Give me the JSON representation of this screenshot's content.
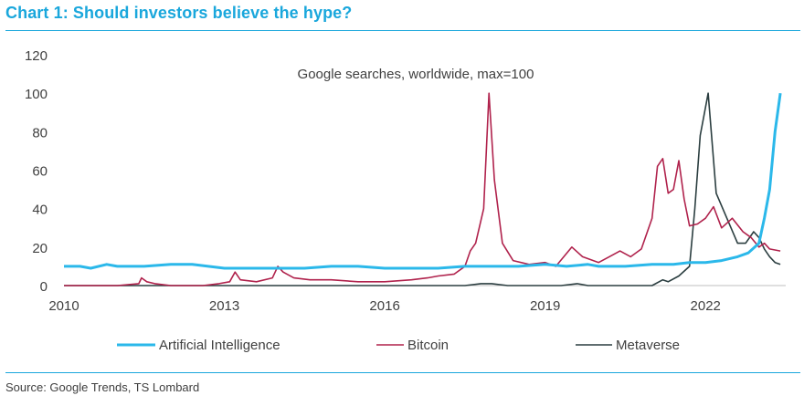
{
  "header": {
    "title": "Chart 1: Should investors believe the hype?"
  },
  "footer": {
    "source": "Source: Google Trends, TS Lombard"
  },
  "colors": {
    "accent": "#1aa7dc",
    "ai": "#2bb8ea",
    "bitcoin": "#b0224c",
    "metaverse": "#2b3e40"
  },
  "chart_data": {
    "type": "line",
    "title": "",
    "subtitle": "Google searches, worldwide, max=100",
    "xlabel": "",
    "ylabel": "",
    "xlim": [
      2010,
      2023.5
    ],
    "ylim": [
      0,
      120
    ],
    "yticks": [
      0,
      20,
      40,
      60,
      80,
      100,
      120
    ],
    "xticks": [
      2010,
      2013,
      2016,
      2019,
      2022
    ],
    "legend_position": "bottom",
    "grid": false,
    "series": [
      {
        "name": "Artificial Intelligence",
        "color": "#2bb8ea",
        "points": [
          [
            2010,
            10
          ],
          [
            2010.3,
            10
          ],
          [
            2010.5,
            9
          ],
          [
            2010.8,
            11
          ],
          [
            2011,
            10
          ],
          [
            2011.5,
            10
          ],
          [
            2012,
            11
          ],
          [
            2012.4,
            11
          ],
          [
            2012.7,
            10
          ],
          [
            2013,
            9
          ],
          [
            2013.5,
            9
          ],
          [
            2014,
            9
          ],
          [
            2014.5,
            9
          ],
          [
            2015,
            10
          ],
          [
            2015.5,
            10
          ],
          [
            2016,
            9
          ],
          [
            2016.5,
            9
          ],
          [
            2017,
            9
          ],
          [
            2017.5,
            10
          ],
          [
            2018,
            10
          ],
          [
            2018.5,
            10
          ],
          [
            2019,
            11
          ],
          [
            2019.4,
            10
          ],
          [
            2019.8,
            11
          ],
          [
            2020,
            10
          ],
          [
            2020.5,
            10
          ],
          [
            2021,
            11
          ],
          [
            2021.4,
            11
          ],
          [
            2021.7,
            12
          ],
          [
            2022,
            12
          ],
          [
            2022.3,
            13
          ],
          [
            2022.6,
            15
          ],
          [
            2022.8,
            17
          ],
          [
            2023,
            22
          ],
          [
            2023.1,
            35
          ],
          [
            2023.2,
            50
          ],
          [
            2023.3,
            80
          ],
          [
            2023.4,
            100
          ]
        ]
      },
      {
        "name": "Bitcoin",
        "color": "#b0224c",
        "points": [
          [
            2010,
            0
          ],
          [
            2011,
            0
          ],
          [
            2011.4,
            1
          ],
          [
            2011.45,
            4
          ],
          [
            2011.55,
            2
          ],
          [
            2011.7,
            1
          ],
          [
            2012,
            0
          ],
          [
            2012.6,
            0
          ],
          [
            2012.9,
            1
          ],
          [
            2013.1,
            2
          ],
          [
            2013.2,
            7
          ],
          [
            2013.3,
            3
          ],
          [
            2013.6,
            2
          ],
          [
            2013.9,
            4
          ],
          [
            2014,
            10
          ],
          [
            2014.1,
            7
          ],
          [
            2014.3,
            4
          ],
          [
            2014.6,
            3
          ],
          [
            2015,
            3
          ],
          [
            2015.5,
            2
          ],
          [
            2016,
            2
          ],
          [
            2016.5,
            3
          ],
          [
            2016.8,
            4
          ],
          [
            2017,
            5
          ],
          [
            2017.3,
            6
          ],
          [
            2017.5,
            10
          ],
          [
            2017.6,
            18
          ],
          [
            2017.7,
            22
          ],
          [
            2017.85,
            40
          ],
          [
            2017.95,
            100
          ],
          [
            2018.05,
            55
          ],
          [
            2018.2,
            22
          ],
          [
            2018.4,
            13
          ],
          [
            2018.7,
            11
          ],
          [
            2019,
            12
          ],
          [
            2019.2,
            10
          ],
          [
            2019.5,
            20
          ],
          [
            2019.7,
            15
          ],
          [
            2020,
            12
          ],
          [
            2020.2,
            15
          ],
          [
            2020.4,
            18
          ],
          [
            2020.6,
            15
          ],
          [
            2020.8,
            19
          ],
          [
            2021,
            35
          ],
          [
            2021.1,
            62
          ],
          [
            2021.2,
            66
          ],
          [
            2021.3,
            48
          ],
          [
            2021.4,
            50
          ],
          [
            2021.5,
            65
          ],
          [
            2021.6,
            45
          ],
          [
            2021.7,
            31
          ],
          [
            2021.85,
            32
          ],
          [
            2022,
            35
          ],
          [
            2022.15,
            41
          ],
          [
            2022.3,
            30
          ],
          [
            2022.5,
            35
          ],
          [
            2022.7,
            28
          ],
          [
            2022.85,
            25
          ],
          [
            2023,
            20
          ],
          [
            2023.1,
            22
          ],
          [
            2023.2,
            19
          ],
          [
            2023.4,
            18
          ]
        ]
      },
      {
        "name": "Metaverse",
        "color": "#2b3e40",
        "points": [
          [
            2010,
            0
          ],
          [
            2017.5,
            0
          ],
          [
            2017.8,
            1
          ],
          [
            2018,
            1
          ],
          [
            2018.3,
            0
          ],
          [
            2019.3,
            0
          ],
          [
            2019.6,
            1
          ],
          [
            2019.8,
            0
          ],
          [
            2021,
            0
          ],
          [
            2021.2,
            3
          ],
          [
            2021.3,
            2
          ],
          [
            2021.5,
            5
          ],
          [
            2021.7,
            10
          ],
          [
            2021.8,
            40
          ],
          [
            2021.9,
            78
          ],
          [
            2022.05,
            100
          ],
          [
            2022.2,
            48
          ],
          [
            2022.4,
            35
          ],
          [
            2022.6,
            22
          ],
          [
            2022.75,
            22
          ],
          [
            2022.9,
            28
          ],
          [
            2023,
            25
          ],
          [
            2023.1,
            19
          ],
          [
            2023.2,
            15
          ],
          [
            2023.3,
            12
          ],
          [
            2023.4,
            11
          ]
        ]
      }
    ]
  }
}
